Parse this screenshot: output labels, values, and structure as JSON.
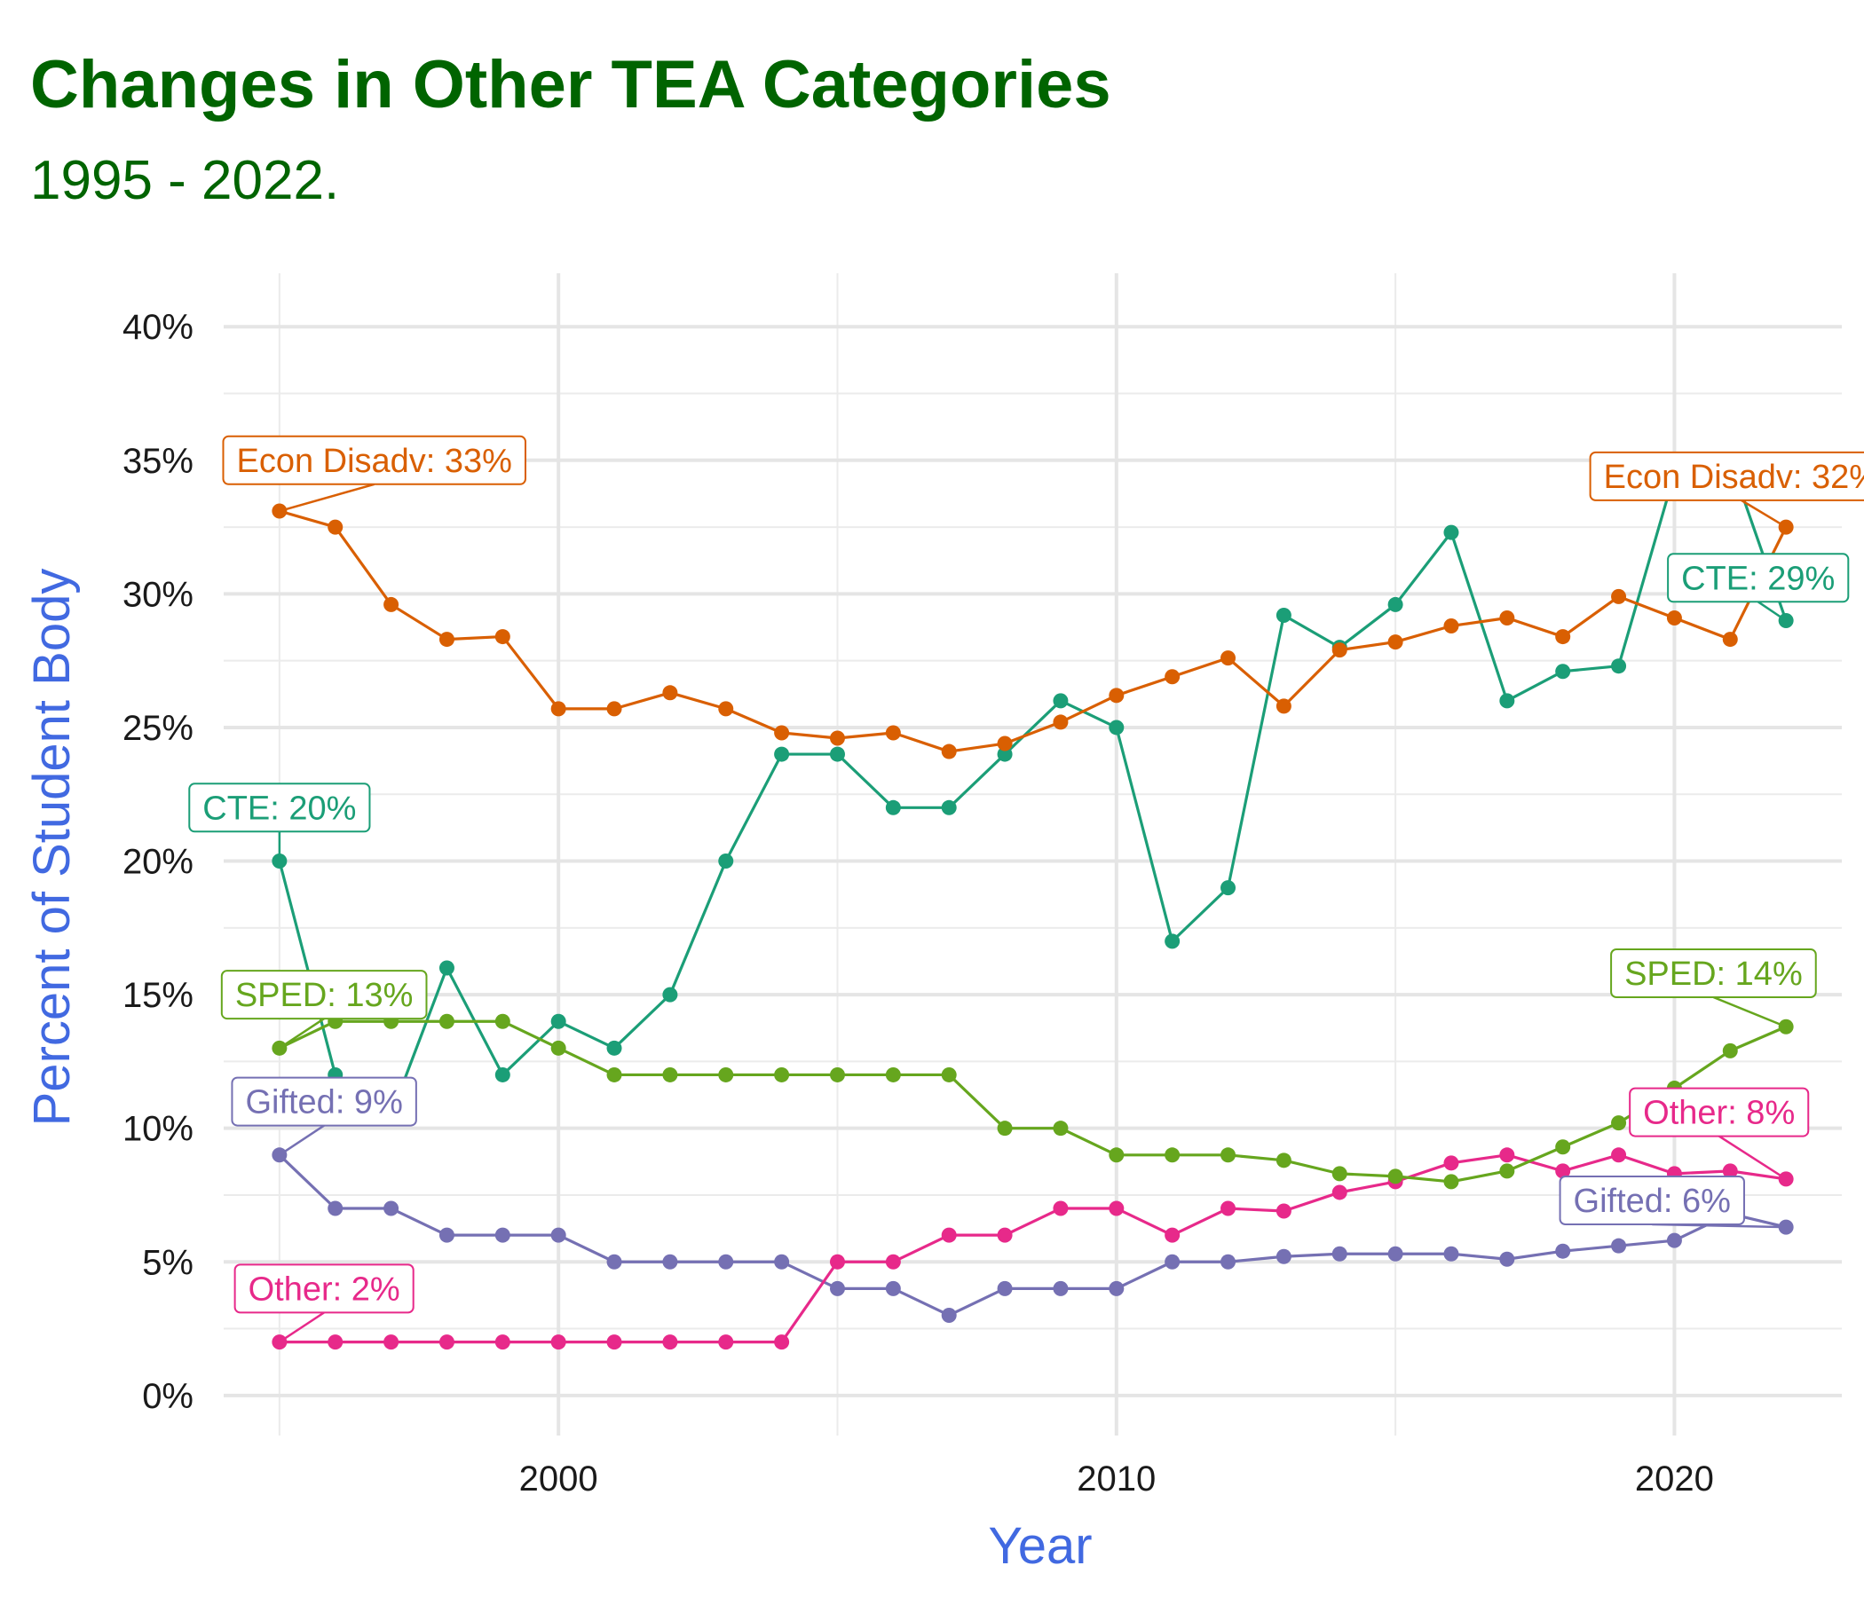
{
  "title": "Changes in Other TEA Categories",
  "subtitle": "1995 - 2022.",
  "chart_data": {
    "type": "line",
    "xlabel": "Year",
    "ylabel": "Percent of Student Body",
    "xlim": [
      1994,
      2023
    ],
    "ylim": [
      -1.5,
      42
    ],
    "x_ticks": [
      2000,
      2010,
      2020
    ],
    "x_tick_labels": [
      "2000",
      "2010",
      "2020"
    ],
    "y_ticks": [
      0,
      5,
      10,
      15,
      20,
      25,
      30,
      35,
      40
    ],
    "y_tick_labels": [
      "0%",
      "5%",
      "10%",
      "15%",
      "20%",
      "25%",
      "30%",
      "35%",
      "40%"
    ],
    "grid": true,
    "legend": "none",
    "x": [
      1995,
      1996,
      1997,
      1998,
      1999,
      2000,
      2001,
      2002,
      2003,
      2004,
      2005,
      2006,
      2007,
      2008,
      2009,
      2010,
      2011,
      2012,
      2013,
      2014,
      2015,
      2016,
      2017,
      2018,
      2019,
      2020,
      2021,
      2022
    ],
    "series": [
      {
        "key": "cte",
        "color": "#1b9e77",
        "values": [
          20,
          12,
          10.5,
          16,
          12,
          14,
          13,
          15,
          20,
          24,
          24,
          22,
          22,
          24,
          26,
          25,
          17,
          19,
          29.2,
          28,
          29.6,
          32.3,
          26,
          27.1,
          27.3,
          34.5,
          35,
          29
        ],
        "start_label": "CTE: 20%",
        "end_label": "CTE: 29%"
      },
      {
        "key": "econ",
        "color": "#d95f02",
        "values": [
          33.1,
          32.5,
          29.6,
          28.3,
          28.4,
          25.7,
          25.7,
          26.3,
          25.7,
          24.8,
          24.6,
          24.8,
          24.1,
          24.4,
          25.2,
          26.2,
          26.9,
          27.6,
          25.8,
          27.9,
          28.2,
          28.8,
          29.1,
          28.4,
          29.9,
          29.1,
          28.3,
          32.5
        ],
        "start_label": "Econ Disadv: 33%",
        "end_label": "Econ Disadv: 32%"
      },
      {
        "key": "gifted",
        "color": "#7570b3",
        "values": [
          9,
          7,
          7,
          6,
          6,
          6,
          5,
          5,
          5,
          5,
          4,
          4,
          3,
          4,
          4,
          4,
          5,
          5,
          5.2,
          5.3,
          5.3,
          5.3,
          5.1,
          5.4,
          5.6,
          5.8,
          6.8,
          6.3
        ],
        "start_label": "Gifted: 9%",
        "end_label": "Gifted: 6%"
      },
      {
        "key": "other",
        "color": "#e7298a",
        "values": [
          2,
          2,
          2,
          2,
          2,
          2,
          2,
          2,
          2,
          2,
          5,
          5,
          6,
          6,
          7,
          7,
          6,
          7,
          6.9,
          7.6,
          8,
          8.7,
          9,
          8.4,
          9,
          8.3,
          8.4,
          8.1
        ],
        "start_label": "Other: 2%",
        "end_label": "Other: 8%"
      },
      {
        "key": "sped",
        "color": "#66a61e",
        "values": [
          13,
          14,
          14,
          14,
          14,
          13,
          12,
          12,
          12,
          12,
          12,
          12,
          12,
          10,
          10,
          9,
          9,
          9,
          8.8,
          8.3,
          8.2,
          8,
          8.4,
          9.3,
          10.2,
          11.5,
          12.9,
          13.8
        ],
        "start_label": "SPED: 13%",
        "end_label": "SPED: 14%"
      }
    ]
  }
}
